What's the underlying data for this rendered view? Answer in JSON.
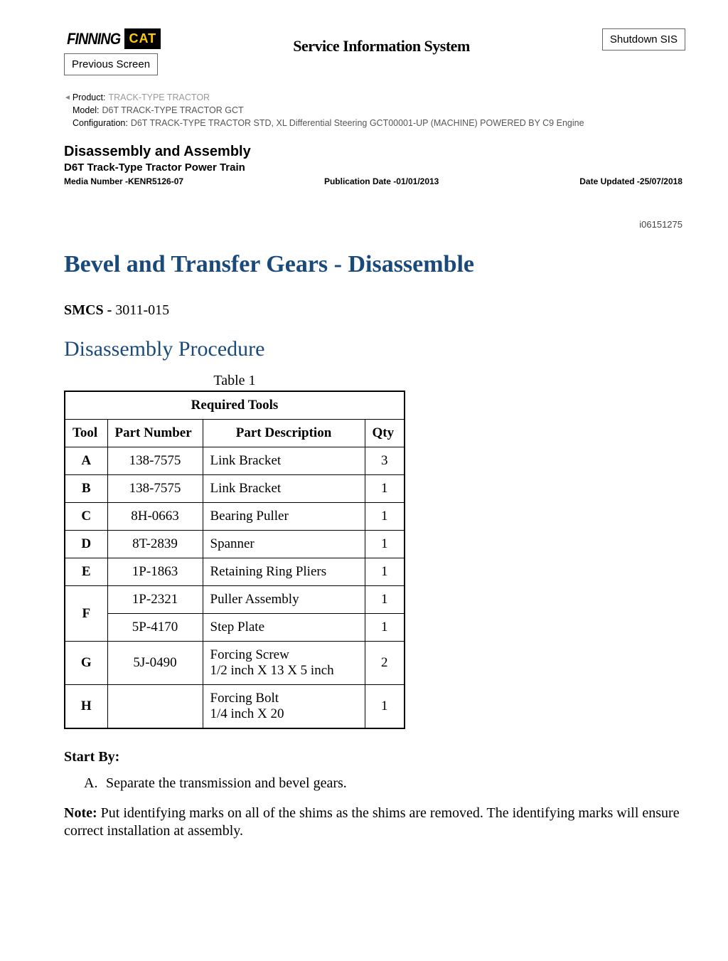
{
  "header": {
    "logo_finning": "FINNING",
    "logo_cat": "CAT",
    "sis_title": "Service Information System",
    "shutdown_btn": "Shutdown SIS",
    "prev_btn": "Previous Screen"
  },
  "meta": {
    "product_label": "Product:",
    "product_value": "TRACK-TYPE TRACTOR",
    "model_label": "Model:",
    "model_value": "D6T TRACK-TYPE TRACTOR GCT",
    "config_label": "Configuration:",
    "config_value": "D6T TRACK-TYPE TRACTOR STD, XL Differential Steering GCT00001-UP (MACHINE) POWERED BY C9 Engine"
  },
  "doc": {
    "section_title": "Disassembly and Assembly",
    "subsection": "D6T Track-Type Tractor Power Train",
    "media_label": "Media Number -KENR5126-07",
    "pub_label": "Publication Date -01/01/2013",
    "updated_label": "Date Updated -25/07/2018",
    "doc_id": "i06151275",
    "h1": "Bevel and Transfer Gears - Disassemble",
    "smcs_label": "SMCS -",
    "smcs_value": "3011-015",
    "h2": "Disassembly Procedure"
  },
  "table": {
    "caption": "Table 1",
    "header": "Required Tools",
    "columns": {
      "tool": "Tool",
      "part_number": "Part Number",
      "part_description": "Part Description",
      "qty": "Qty"
    },
    "rows": [
      {
        "tool": "A",
        "pn": "138-7575",
        "desc": "Link Bracket",
        "qty": "3",
        "rowspan": 1
      },
      {
        "tool": "B",
        "pn": "138-7575",
        "desc": "Link Bracket",
        "qty": "1",
        "rowspan": 1
      },
      {
        "tool": "C",
        "pn": "8H-0663",
        "desc": "Bearing Puller",
        "qty": "1",
        "rowspan": 1
      },
      {
        "tool": "D",
        "pn": "8T-2839",
        "desc": "Spanner",
        "qty": "1",
        "rowspan": 1
      },
      {
        "tool": "E",
        "pn": "1P-1863",
        "desc": "Retaining Ring Pliers",
        "qty": "1",
        "rowspan": 1
      },
      {
        "tool": "F",
        "pn": "1P-2321",
        "desc": "Puller Assembly",
        "qty": "1",
        "rowspan": 2
      },
      {
        "tool": "",
        "pn": "5P-4170",
        "desc": "Step Plate",
        "qty": "1",
        "rowspan": 0
      },
      {
        "tool": "G",
        "pn": "5J-0490",
        "desc": "Forcing Screw\n1/2 inch X 13 X 5 inch",
        "qty": "2",
        "rowspan": 1
      },
      {
        "tool": "H",
        "pn": "",
        "desc": "Forcing Bolt\n1/4 inch X 20",
        "qty": "1",
        "rowspan": 1
      }
    ]
  },
  "body": {
    "start_by": "Start By:",
    "step_marker": "A.",
    "step_text": "Separate the transmission and bevel gears.",
    "note_label": "Note:",
    "note_text": "Put identifying marks on all of the shims as the shims are removed. The identifying marks will ensure correct installation at assembly."
  },
  "colors": {
    "heading_blue": "#194a7a",
    "cat_yellow": "#ffcc00"
  }
}
